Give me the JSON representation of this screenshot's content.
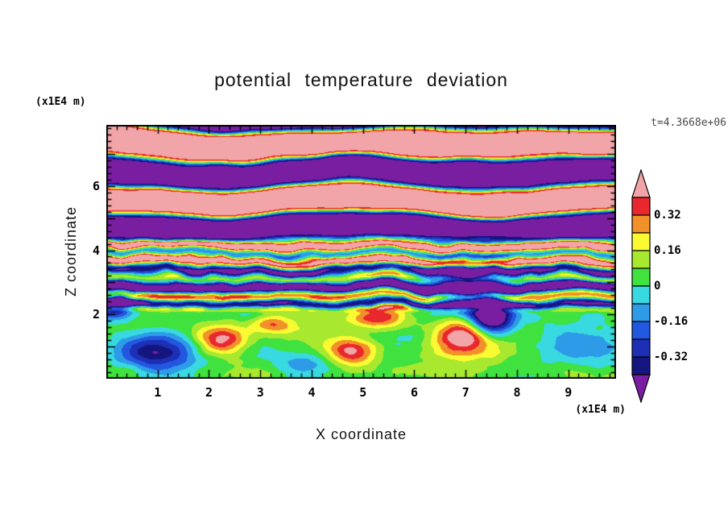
{
  "title": "potential temperature deviation",
  "timestamp_label": "t=4.3668e+06",
  "axes": {
    "x_title": "X coordinate",
    "x_unit": "(x1E4 m)",
    "z_title": "Z coordinate",
    "z_unit": "(x1E4 m)",
    "x_tick_labels": [
      1,
      2,
      3,
      4,
      5,
      6,
      7,
      8,
      9
    ],
    "z_tick_labels": [
      2,
      4,
      6
    ]
  },
  "chart_data": {
    "type": "heatmap",
    "subtype": "filled-contour",
    "title": "potential temperature deviation",
    "xlabel": "X coordinate (x1E4 m)",
    "ylabel": "Z coordinate (x1E4 m)",
    "time_annotation": "t=4.3668e+06",
    "x_range": [
      0,
      9.93
    ],
    "z_range": [
      0,
      7.9
    ],
    "x_ticks": [
      1,
      2,
      3,
      4,
      5,
      6,
      7,
      8,
      9
    ],
    "z_ticks": [
      2,
      4,
      6
    ],
    "minor_tick_step": 0.2,
    "grid": false,
    "legend_position": "right-colorbar",
    "colorbar": {
      "labels": [
        "0.32",
        "0.16",
        "0",
        "-0.16",
        "-0.32"
      ],
      "label_values": [
        0.32,
        0.16,
        0,
        -0.16,
        -0.32
      ],
      "levels": [
        -0.4,
        -0.32,
        -0.24,
        -0.16,
        -0.08,
        0,
        0.08,
        0.16,
        0.24,
        0.32,
        0.4
      ],
      "colors_low_to_high": [
        "#7A1EA1",
        "#14157F",
        "#1C2FB5",
        "#2257E0",
        "#2E9BE8",
        "#38D9E0",
        "#3FE23F",
        "#A8E82E",
        "#FAFA33",
        "#F2902A",
        "#E8282D",
        "#F2A5A8"
      ],
      "under_color": "#7A1EA1",
      "over_color": "#F2A5A8"
    },
    "description": "Vertical cross-section of potential temperature deviation from a stratified turbulence simulation: alternating pink (warm, >0.4) and purple (cold, <-0.4) gravity-wave bands in the upper region (z > ~4.4), a strongly sheared multicolored turbulent layer between z ~2.2 and ~4.4 with warm (red/orange/yellow) filaments near z~4 and cold (blue/navy) filaments near z~3, and a well-mixed green/cyan convective region below z ~2.2 containing warm swirls (red/orange) near x~2.2, 4.7 and 7.0, a cold dark-blue pool near x~1, z~0.9, and purple intrusions near x~0 and x~7.5.",
    "field_model": {
      "seed": 7,
      "upper": {
        "z_min": 4.35,
        "wavelength": 1.75,
        "phase": 0.08,
        "amplitude": 0.55,
        "sharpness": 2.5,
        "distortion": 0.35,
        "noise_scale": [
          0.4,
          0.35
        ]
      },
      "middle": {
        "z_min": 2.15,
        "wavelength": 0.5,
        "amplitude": 0.38,
        "distortion": 0.9,
        "noise_scale": [
          1.1,
          0.8
        ],
        "warm_layer": {
          "z": 3.95,
          "sigma": 0.38,
          "amp": 0.26
        },
        "cold_layer": {
          "z": 3.0,
          "sigma": 0.33,
          "amp": -0.28
        }
      },
      "lower": {
        "base": 0.05,
        "noise_amp": 0.32,
        "noise_scale": [
          0.75,
          0.95
        ]
      },
      "blobs": [
        {
          "x": 0.95,
          "z": 0.85,
          "rx": 0.85,
          "rz": 0.5,
          "amp": -0.5
        },
        {
          "x": 2.25,
          "z": 1.25,
          "rx": 0.5,
          "rz": 0.45,
          "amp": 0.45
        },
        {
          "x": 3.2,
          "z": 1.7,
          "rx": 0.45,
          "rz": 0.3,
          "amp": 0.3
        },
        {
          "x": 4.75,
          "z": 0.85,
          "rx": 0.55,
          "rz": 0.45,
          "amp": 0.42
        },
        {
          "x": 5.3,
          "z": 1.9,
          "rx": 0.5,
          "rz": 0.35,
          "amp": 0.3
        },
        {
          "x": 6.95,
          "z": 1.35,
          "rx": 0.55,
          "rz": 0.6,
          "amp": 0.5
        },
        {
          "x": 7.5,
          "z": 1.9,
          "rx": 0.4,
          "rz": 0.55,
          "amp": -0.7
        },
        {
          "x": 7.0,
          "z": 2.8,
          "rx": 0.7,
          "rz": 0.8,
          "amp": -0.45
        },
        {
          "x": 0.15,
          "z": 2.3,
          "rx": 0.4,
          "rz": 0.45,
          "amp": -0.5
        },
        {
          "x": 9.3,
          "z": 0.9,
          "rx": 0.9,
          "rz": 0.6,
          "amp": -0.18
        },
        {
          "x": 3.9,
          "z": 0.5,
          "rx": 0.8,
          "rz": 0.4,
          "amp": -0.16
        }
      ]
    }
  }
}
